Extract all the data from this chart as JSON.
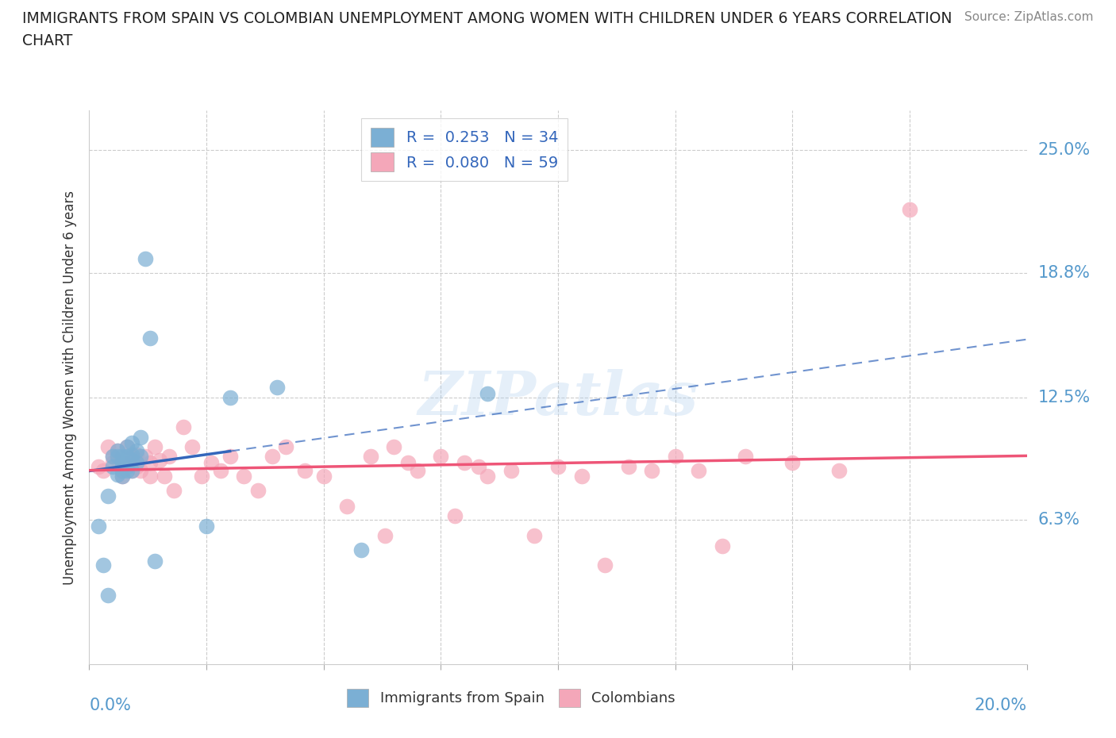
{
  "title_line1": "IMMIGRANTS FROM SPAIN VS COLOMBIAN UNEMPLOYMENT AMONG WOMEN WITH CHILDREN UNDER 6 YEARS CORRELATION",
  "title_line2": "CHART",
  "source": "Source: ZipAtlas.com",
  "ylabel": "Unemployment Among Women with Children Under 6 years",
  "ytick_labels": [
    "6.3%",
    "12.5%",
    "18.8%",
    "25.0%"
  ],
  "ytick_values": [
    0.063,
    0.125,
    0.188,
    0.25
  ],
  "xtick_values": [
    0.0,
    0.025,
    0.05,
    0.075,
    0.1,
    0.125,
    0.15,
    0.175,
    0.2
  ],
  "xlim": [
    0.0,
    0.2
  ],
  "ylim": [
    -0.01,
    0.27
  ],
  "spain_R": 0.253,
  "spain_N": 34,
  "colombia_R": 0.08,
  "colombia_N": 59,
  "spain_color": "#7BAFD4",
  "colombia_color": "#F4A7B9",
  "spain_trend_color": "#3366BB",
  "colombia_trend_color": "#EE5577",
  "watermark": "ZIPatlas",
  "spain_x": [
    0.002,
    0.003,
    0.004,
    0.004,
    0.005,
    0.005,
    0.006,
    0.006,
    0.006,
    0.007,
    0.007,
    0.007,
    0.007,
    0.007,
    0.008,
    0.008,
    0.008,
    0.008,
    0.009,
    0.009,
    0.009,
    0.009,
    0.01,
    0.01,
    0.011,
    0.011,
    0.012,
    0.013,
    0.014,
    0.025,
    0.03,
    0.04,
    0.058,
    0.085
  ],
  "spain_y": [
    0.06,
    0.04,
    0.025,
    0.075,
    0.09,
    0.095,
    0.086,
    0.095,
    0.098,
    0.088,
    0.092,
    0.095,
    0.085,
    0.09,
    0.088,
    0.095,
    0.1,
    0.09,
    0.088,
    0.093,
    0.096,
    0.102,
    0.092,
    0.098,
    0.095,
    0.105,
    0.195,
    0.155,
    0.042,
    0.06,
    0.125,
    0.13,
    0.048,
    0.127
  ],
  "colombia_x": [
    0.002,
    0.003,
    0.004,
    0.005,
    0.005,
    0.006,
    0.007,
    0.008,
    0.008,
    0.009,
    0.009,
    0.01,
    0.01,
    0.011,
    0.012,
    0.013,
    0.013,
    0.014,
    0.015,
    0.016,
    0.017,
    0.018,
    0.02,
    0.022,
    0.024,
    0.026,
    0.028,
    0.03,
    0.033,
    0.036,
    0.039,
    0.042,
    0.046,
    0.05,
    0.055,
    0.06,
    0.063,
    0.065,
    0.068,
    0.07,
    0.075,
    0.078,
    0.08,
    0.083,
    0.085,
    0.09,
    0.095,
    0.1,
    0.105,
    0.11,
    0.115,
    0.12,
    0.125,
    0.13,
    0.135,
    0.14,
    0.15,
    0.16,
    0.175
  ],
  "colombia_y": [
    0.09,
    0.088,
    0.1,
    0.092,
    0.095,
    0.098,
    0.085,
    0.092,
    0.1,
    0.088,
    0.095,
    0.09,
    0.096,
    0.088,
    0.095,
    0.085,
    0.092,
    0.1,
    0.093,
    0.085,
    0.095,
    0.078,
    0.11,
    0.1,
    0.085,
    0.092,
    0.088,
    0.095,
    0.085,
    0.078,
    0.095,
    0.1,
    0.088,
    0.085,
    0.07,
    0.095,
    0.055,
    0.1,
    0.092,
    0.088,
    0.095,
    0.065,
    0.092,
    0.09,
    0.085,
    0.088,
    0.055,
    0.09,
    0.085,
    0.04,
    0.09,
    0.088,
    0.095,
    0.088,
    0.05,
    0.095,
    0.092,
    0.088,
    0.22
  ]
}
